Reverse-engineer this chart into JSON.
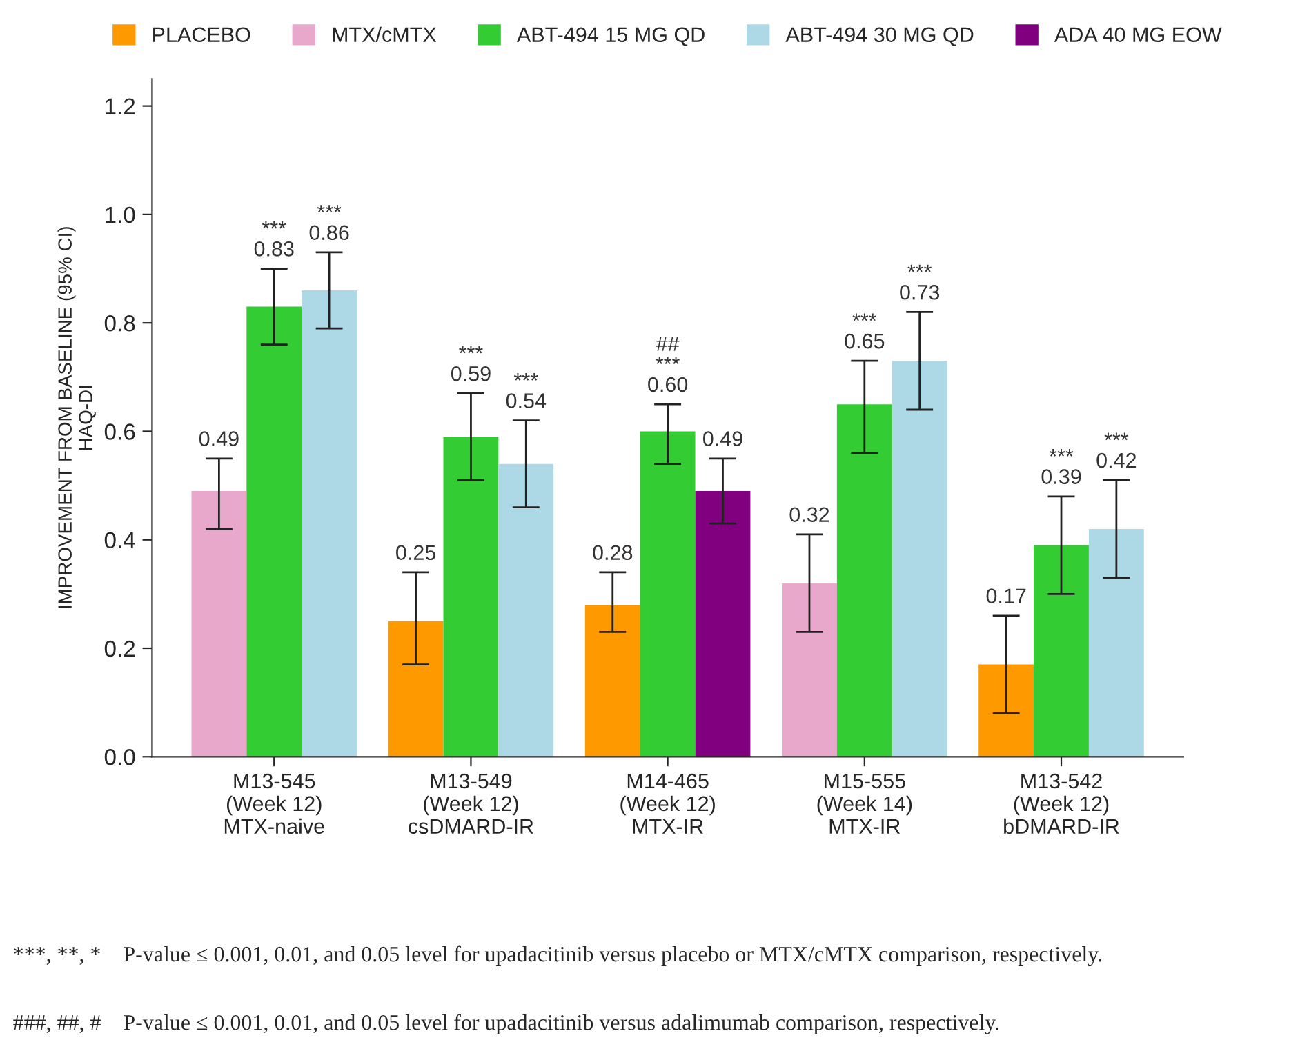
{
  "chart_data": {
    "type": "bar",
    "categories": [
      "M13-545\n(Week 12)\nMTX-naive",
      "M13-549\n(Week 12)\ncsDMARD-IR",
      "M14-465\n(Week 12)\nMTX-IR",
      "M15-555\n(Week 14)\nMTX-IR",
      "M13-542\n(Week 12)\nbDMARD-IR"
    ],
    "ylabel": "IMPROVEMENT FROM BASELINE (95% CI)\nHAQ-DI",
    "series": [
      {
        "name": "PLACEBO",
        "color": "#ff9900",
        "values": [
          null,
          0.25,
          0.28,
          null,
          0.17
        ],
        "errors": [
          null,
          [
            0.17,
            0.34
          ],
          [
            0.23,
            0.34
          ],
          null,
          [
            0.08,
            0.26
          ]
        ],
        "value_labels": [
          null,
          "0.25",
          "0.28",
          null,
          "0.17"
        ]
      },
      {
        "name": "MTX/cMTX",
        "color": "#e8a8cc",
        "values": [
          0.49,
          null,
          null,
          0.32,
          null
        ],
        "errors": [
          [
            0.42,
            0.55
          ],
          null,
          null,
          [
            0.23,
            0.41
          ],
          null
        ],
        "value_labels": [
          "0.49",
          null,
          null,
          "0.32",
          null
        ]
      },
      {
        "name": "ABT-494 15 MG QD",
        "color": "#33cc33",
        "values": [
          0.83,
          0.59,
          0.6,
          0.65,
          0.39
        ],
        "errors": [
          [
            0.76,
            0.9
          ],
          [
            0.51,
            0.67
          ],
          [
            0.54,
            0.65
          ],
          [
            0.56,
            0.73
          ],
          [
            0.3,
            0.48
          ]
        ],
        "value_labels": [
          "***\n0.83",
          "***\n0.59",
          "##\n***\n0.60",
          "***\n0.65",
          "***\n0.39"
        ]
      },
      {
        "name": "ABT-494 30 MG QD",
        "color": "#add8e6",
        "values": [
          0.86,
          0.54,
          null,
          0.73,
          0.42
        ],
        "errors": [
          [
            0.79,
            0.93
          ],
          [
            0.46,
            0.62
          ],
          null,
          [
            0.64,
            0.82
          ],
          [
            0.33,
            0.51
          ]
        ],
        "value_labels": [
          "***\n0.86",
          "***\n0.54",
          null,
          "***\n0.73",
          "***\n0.42"
        ]
      },
      {
        "name": "ADA 40 MG EOW",
        "color": "#800080",
        "values": [
          null,
          null,
          0.49,
          null,
          null
        ],
        "errors": [
          null,
          null,
          [
            0.43,
            0.55
          ],
          null,
          null
        ],
        "value_labels": [
          null,
          null,
          "0.49",
          null,
          null
        ]
      }
    ],
    "ylim": [
      0,
      1.25
    ],
    "yticks": [
      {
        "value": 0,
        "label": "0.0"
      },
      0.2,
      0.4,
      0.6,
      0.8,
      {
        "value": 1,
        "label": "1.0"
      },
      1.2
    ],
    "grid": false,
    "legend": "top",
    "annotations": [
      "***, **, * P-value ≤ 0.001, 0.01, and 0.05 level for upadacitinib versus placebo or MTX/cMTX comparison, respectively.",
      "###, ##, # P-value ≤ 0.001, 0.01, and 0.05 level for upadacitinib versus adalimumab comparison, respectively."
    ]
  }
}
